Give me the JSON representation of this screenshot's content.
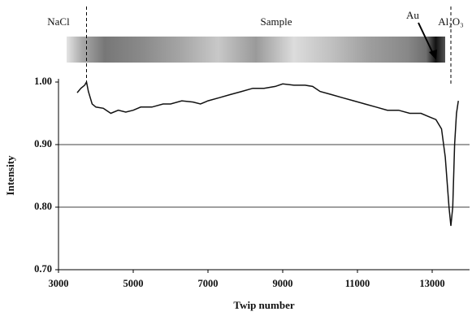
{
  "chart_data": {
    "type": "line",
    "x_label": "Twip number",
    "y_label": "Intensity",
    "annotations": [
      "NaCl",
      "Sample",
      "Au",
      "Al₂O₃"
    ],
    "boundaries": [
      3750,
      13500
    ],
    "xlim": [
      3000,
      14000
    ],
    "xticks": [
      3000,
      5000,
      7000,
      9000,
      11000,
      13000
    ],
    "ylim": [
      0.7,
      1.0
    ],
    "yticks": [
      {
        "value": 0.7,
        "label": "0.70"
      },
      {
        "value": 0.8,
        "label": "0.80"
      },
      {
        "value": 0.9,
        "label": "0.90"
      },
      {
        "value": 1.0,
        "label": "1.00"
      }
    ],
    "grid": true,
    "color": "#111111",
    "x": [
      3500,
      3600,
      3700,
      3750,
      3800,
      3900,
      4000,
      4200,
      4400,
      4600,
      4800,
      5000,
      5200,
      5500,
      5800,
      6000,
      6300,
      6600,
      6800,
      7000,
      7300,
      7600,
      7900,
      8200,
      8500,
      8800,
      9000,
      9300,
      9600,
      9800,
      10000,
      10300,
      10600,
      10900,
      11200,
      11500,
      11800,
      12100,
      12400,
      12700,
      12900,
      13100,
      13250,
      13350,
      13450,
      13500,
      13550,
      13600,
      13650,
      13700
    ],
    "values": [
      0.983,
      0.99,
      0.995,
      1.0,
      0.985,
      0.965,
      0.96,
      0.958,
      0.95,
      0.955,
      0.952,
      0.955,
      0.96,
      0.96,
      0.965,
      0.965,
      0.97,
      0.968,
      0.965,
      0.97,
      0.975,
      0.98,
      0.985,
      0.99,
      0.99,
      0.993,
      0.997,
      0.995,
      0.995,
      0.993,
      0.985,
      0.98,
      0.975,
      0.97,
      0.965,
      0.96,
      0.955,
      0.955,
      0.95,
      0.95,
      0.945,
      0.94,
      0.925,
      0.88,
      0.8,
      0.77,
      0.8,
      0.9,
      0.95,
      0.97
    ]
  }
}
